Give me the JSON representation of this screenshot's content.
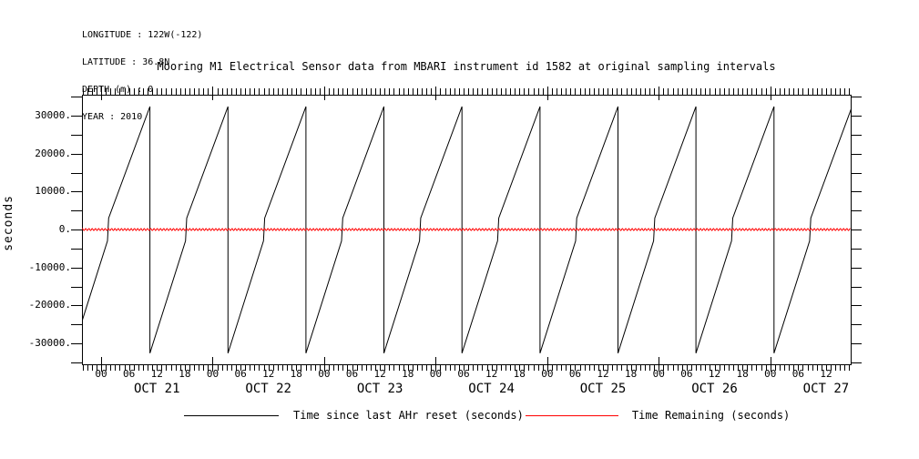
{
  "meta": {
    "lines": [
      "LONGITUDE : 122W(-122)",
      "LATITUDE : 36.8N",
      "DEPTH (m) : 0",
      "YEAR : 2010"
    ]
  },
  "title": "Mooring M1 Electrical Sensor data from MBARI instrument id 1582 at original sampling intervals",
  "ylabel": "seconds",
  "legend": [
    {
      "label": "Time since last AHr reset (seconds)",
      "color": "#000000"
    },
    {
      "label": "Time Remaining (seconds)",
      "color": "#ff0000"
    }
  ],
  "chart_data": {
    "type": "line",
    "title": "Mooring M1 Electrical Sensor data from MBARI instrument id 1582 at original sampling intervals",
    "xlabel": "",
    "ylabel": "seconds",
    "x_unit": "hours since 2010-10-21 00:00",
    "xlim": [
      -4.12,
      161.3
    ],
    "ylim": [
      -35520,
      35520
    ],
    "grid": false,
    "legend_position": "bottom",
    "y_ticks": [
      {
        "v": 30000,
        "label": "30000."
      },
      {
        "v": 20000,
        "label": "20000."
      },
      {
        "v": 10000,
        "label": "10000."
      },
      {
        "v": 0,
        "label": "0."
      },
      {
        "v": -10000,
        "label": "-10000."
      },
      {
        "v": -20000,
        "label": "-20000."
      },
      {
        "v": -30000,
        "label": "-30000."
      }
    ],
    "y_minor_step": 5000,
    "x_minor_step_h": 1,
    "x_major_every_h": 24,
    "hour_labels": {
      "from": 0,
      "to": 156,
      "step": 6,
      "cycle": [
        "00",
        "06",
        "12",
        "18"
      ]
    },
    "date_labels": [
      {
        "t": 12,
        "label": "OCT 21"
      },
      {
        "t": 36,
        "label": "OCT 22"
      },
      {
        "t": 60,
        "label": "OCT 23"
      },
      {
        "t": 84,
        "label": "OCT 24"
      },
      {
        "t": 108,
        "label": "OCT 25"
      },
      {
        "t": 132,
        "label": "OCT 26"
      },
      {
        "t": 156,
        "label": "OCT 27"
      }
    ],
    "series": [
      {
        "name": "Time since last AHr reset (seconds)",
        "color": "#000000",
        "model": "sawtooth",
        "peak_times_h": [
          -6.29,
          10.5,
          27.29,
          44.08,
          60.86,
          77.65,
          94.44,
          111.23,
          128.01,
          144.8,
          161.59
        ],
        "period_h": 16.79,
        "peak_value": 32400,
        "trough_value": -32600,
        "rise_below_hours": 7.66,
        "jog_hours": 0.25,
        "jog_from": -3000,
        "jog_to": 3000
      },
      {
        "name": "Time Remaining (seconds)",
        "color": "#ff0000",
        "model": "wiggle",
        "base_value": 0,
        "amplitude": 270,
        "wiggle_period_h": 0.7,
        "sample_step_h": 0.14
      }
    ]
  }
}
